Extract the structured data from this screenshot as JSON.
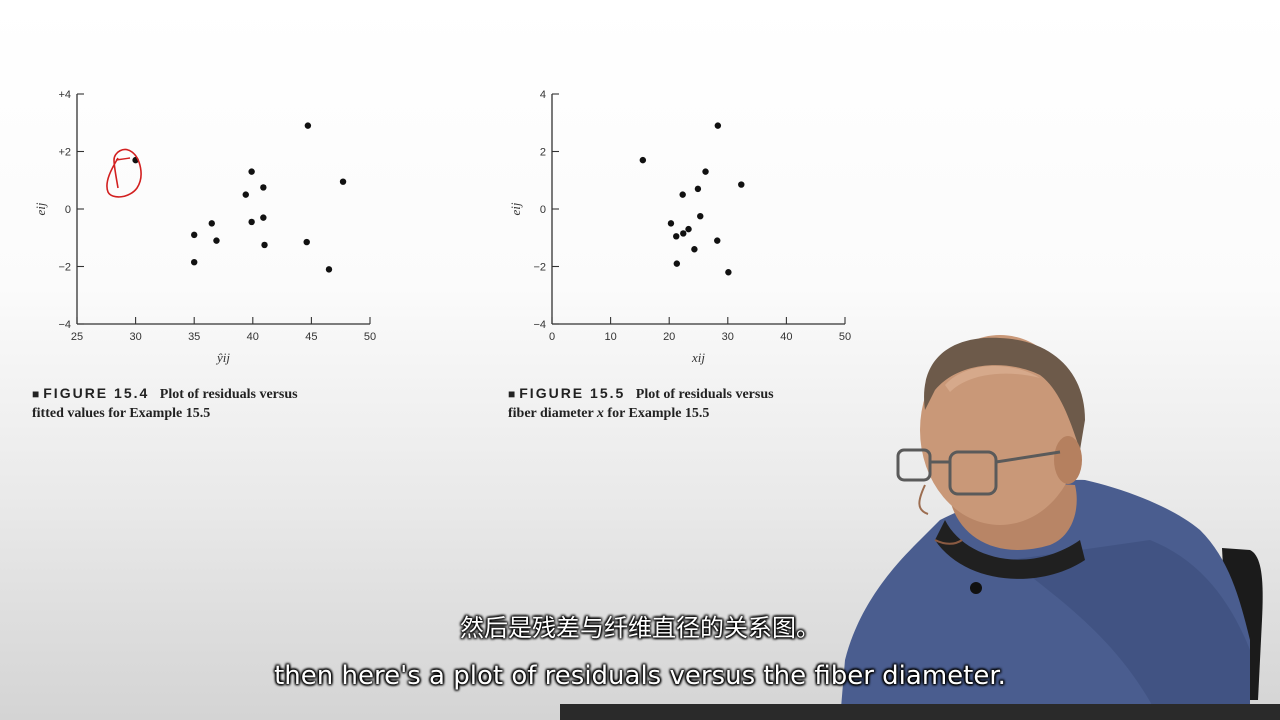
{
  "chart_data": [
    {
      "type": "scatter",
      "figure_label": "FIGURE 15.4",
      "caption_text": "Plot of residuals versus",
      "caption_line2": "fitted values for Example 15.5",
      "xlabel": "ŷij",
      "ylabel": "eij",
      "xlim": [
        25,
        50
      ],
      "ylim": [
        -4,
        4
      ],
      "xticks": [
        "25",
        "30",
        "35",
        "40",
        "45",
        "50"
      ],
      "yticks": [
        "+4",
        "+2",
        "0",
        "−2",
        "−4"
      ],
      "x": [
        30.0,
        35.0,
        35.0,
        36.5,
        36.9,
        39.4,
        39.9,
        39.9,
        40.9,
        40.9,
        41.0,
        44.6,
        44.7,
        46.5,
        47.7
      ],
      "y": [
        1.7,
        -0.9,
        -1.85,
        -0.5,
        -1.1,
        0.5,
        1.3,
        -0.45,
        -0.3,
        0.75,
        -1.25,
        -1.15,
        2.9,
        -2.1,
        0.95
      ],
      "grid": false
    },
    {
      "type": "scatter",
      "figure_label": "FIGURE 15.5",
      "caption_text": "Plot of residuals versus",
      "caption_line2_a": "fiber diameter",
      "caption_line2_x": "x",
      "caption_line2_b": "for Example 15.5",
      "xlabel": "xij",
      "ylabel": "eij",
      "xlim": [
        0,
        50
      ],
      "ylim": [
        -4,
        4
      ],
      "xticks": [
        "0",
        "10",
        "20",
        "30",
        "40",
        "50"
      ],
      "yticks": [
        "4",
        "2",
        "0",
        "−2",
        "−4"
      ],
      "x": [
        15.5,
        20.3,
        21.2,
        21.3,
        22.3,
        22.4,
        23.3,
        24.3,
        24.9,
        25.3,
        26.2,
        28.2,
        28.3,
        30.1,
        32.3
      ],
      "y": [
        1.7,
        -0.5,
        -0.95,
        -1.9,
        0.5,
        -0.85,
        -0.7,
        -1.4,
        0.7,
        -0.25,
        1.3,
        -1.1,
        2.9,
        -2.2,
        0.85
      ],
      "grid": false
    }
  ],
  "subtitles": {
    "chinese": "然后是残差与纤维直径的关系图。",
    "english": "then here's a plot of residuals versus the fiber diameter."
  },
  "colors": {
    "annotation": "#d22020",
    "points": "#111111",
    "shirt": "#4a5d8f"
  }
}
